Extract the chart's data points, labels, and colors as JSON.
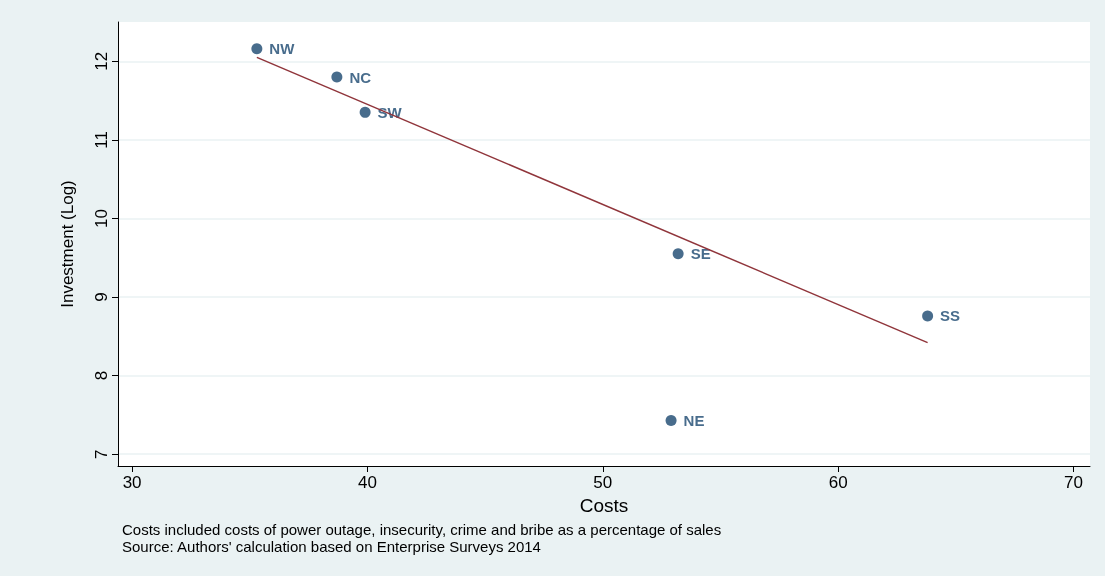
{
  "chart_data": {
    "type": "scatter",
    "xlabel": "Costs",
    "ylabel": "Investment (Log)",
    "xlim": [
      29.4,
      70.7
    ],
    "ylim": [
      6.85,
      12.5
    ],
    "xticks": [
      30,
      40,
      50,
      60,
      70
    ],
    "yticks": [
      7,
      8,
      9,
      10,
      11,
      12
    ],
    "grid": "y",
    "marker": "circle",
    "annotations": [
      "Costs included costs of power outage, insecurity, crime and bribe as a percentage of sales",
      "Source: Authors' calculation based on Enterprise Surveys 2014"
    ],
    "series": [
      {
        "color": "#1a476f",
        "x": [
          35.3,
          38.7,
          39.9,
          53.2,
          63.8,
          52.9
        ],
        "values": [
          12.16,
          11.8,
          11.35,
          9.55,
          8.76,
          7.43
        ],
        "value_labels": [
          "NW",
          "NC",
          "SW",
          "SE",
          "SS",
          "NE"
        ]
      },
      {
        "type": "line",
        "color": "#90353b",
        "x": [
          35.3,
          63.8
        ],
        "values": [
          12.05,
          8.42
        ],
        "marker": "none"
      }
    ]
  }
}
